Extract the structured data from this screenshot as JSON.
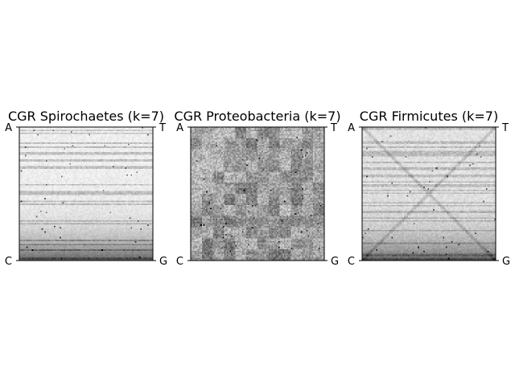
{
  "chart_data": [
    {
      "type": "heatmap",
      "title": "CGR Spirochaetes (k=7)",
      "corners": {
        "top_left": "A",
        "top_right": "T",
        "bottom_left": "C",
        "bottom_right": "G"
      },
      "grid": false,
      "colormap": "greys",
      "texture": {
        "base": 0.03,
        "noise": 0.08,
        "row_bands": 0.22,
        "bottom_gradient": 0.55,
        "diagonal": 0.0,
        "blocks": 0.0
      }
    },
    {
      "type": "heatmap",
      "title": "CGR Proteobacteria (k=7)",
      "corners": {
        "top_left": "A",
        "top_right": "T",
        "bottom_left": "C",
        "bottom_right": "G"
      },
      "grid": false,
      "colormap": "greys",
      "texture": {
        "base": 0.22,
        "noise": 0.28,
        "row_bands": 0.05,
        "bottom_gradient": 0.05,
        "diagonal": 0.0,
        "blocks": 0.25
      }
    },
    {
      "type": "heatmap",
      "title": "CGR Firmicutes (k=7)",
      "corners": {
        "top_left": "A",
        "top_right": "T",
        "bottom_left": "C",
        "bottom_right": "G"
      },
      "grid": false,
      "colormap": "greys",
      "texture": {
        "base": 0.07,
        "noise": 0.1,
        "row_bands": 0.18,
        "bottom_gradient": 0.45,
        "diagonal": 0.12,
        "blocks": 0.0
      }
    }
  ]
}
